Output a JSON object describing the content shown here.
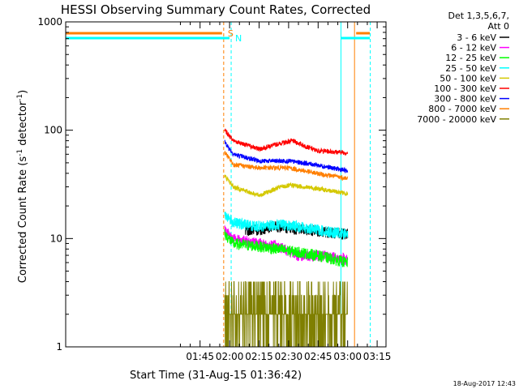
{
  "chart_data": {
    "type": "line",
    "title": "HESSI Observing Summary Count Rates, Corrected",
    "xlabel": "Start Time (31-Aug-15 01:36:42)",
    "ylabel_main": "Corrected Count Rate (s",
    "ylabel_sup1": "-1",
    "ylabel_mid": " detector",
    "ylabel_sup2": "-1",
    "ylabel_end": ")",
    "yscale": "log",
    "ylim": [
      1,
      1000
    ],
    "xlim_minutes": [
      36.7,
      199.5
    ],
    "yticks": [
      {
        "value": 1,
        "label": "1"
      },
      {
        "value": 10,
        "label": "10"
      },
      {
        "value": 100,
        "label": "100"
      },
      {
        "value": 1000,
        "label": "1000"
      }
    ],
    "xticks": [
      {
        "minute": 105,
        "label": "01:45"
      },
      {
        "minute": 120,
        "label": "02:00"
      },
      {
        "minute": 135,
        "label": "02:15"
      },
      {
        "minute": 150,
        "label": "02:30"
      },
      {
        "minute": 165,
        "label": "02:45"
      },
      {
        "minute": 180,
        "label": "03:00"
      },
      {
        "minute": 195,
        "label": "03:15"
      }
    ],
    "legend": {
      "header1": "Det 1,3,5,6,7,",
      "header2": "Att 0",
      "placement": "right",
      "entries": [
        {
          "label": "3 - 6 keV",
          "color": "#000000"
        },
        {
          "label": "6 - 12 keV",
          "color": "#ff00ff"
        },
        {
          "label": "12 - 25 keV",
          "color": "#00ff00"
        },
        {
          "label": "25 - 50 keV",
          "color": "#00ffff"
        },
        {
          "label": "50 - 100 keV",
          "color": "#d4c800"
        },
        {
          "label": "100 - 300 keV",
          "color": "#ff0000"
        },
        {
          "label": "300 - 800 keV",
          "color": "#0000ff"
        },
        {
          "label": "800 - 7000 keV",
          "color": "#ff7f00"
        },
        {
          "label": "7000 - 20000 keV",
          "color": "#7f7f00"
        }
      ]
    },
    "flags": [
      {
        "label": "S",
        "color": "#ff7f00"
      },
      {
        "label": "N",
        "color": "#00ffff"
      }
    ],
    "series_shape": [
      {
        "color": "#ff0000",
        "points": [
          [
            117.5,
            100
          ],
          [
            122,
            80
          ],
          [
            135,
            67
          ],
          [
            145,
            75
          ],
          [
            152,
            80
          ],
          [
            158,
            72
          ],
          [
            164,
            65
          ],
          [
            180,
            62
          ]
        ]
      },
      {
        "color": "#0000ff",
        "points": [
          [
            117.5,
            78
          ],
          [
            122,
            60
          ],
          [
            135,
            52
          ],
          [
            150,
            52
          ],
          [
            164,
            48
          ],
          [
            180,
            42
          ]
        ]
      },
      {
        "color": "#ff7f00",
        "points": [
          [
            117.5,
            63
          ],
          [
            122,
            48
          ],
          [
            135,
            45
          ],
          [
            150,
            45
          ],
          [
            164,
            40
          ],
          [
            180,
            36
          ]
        ]
      },
      {
        "color": "#d4c800",
        "points": [
          [
            117.5,
            38
          ],
          [
            122,
            30
          ],
          [
            135,
            25
          ],
          [
            146,
            30
          ],
          [
            152,
            31
          ],
          [
            164,
            29
          ],
          [
            180,
            26
          ]
        ]
      },
      {
        "color": "#000000",
        "points": [
          [
            128,
            12
          ],
          [
            135,
            12
          ],
          [
            142,
            13
          ],
          [
            150,
            12.5
          ],
          [
            160,
            12
          ],
          [
            170,
            11.5
          ],
          [
            180,
            11
          ]
        ]
      },
      {
        "color": "#00ffff",
        "points": [
          [
            117.5,
            17
          ],
          [
            122,
            14
          ],
          [
            135,
            13
          ],
          [
            145,
            13.5
          ],
          [
            155,
            13
          ],
          [
            165,
            12
          ],
          [
            180,
            11
          ]
        ]
      },
      {
        "color": "#ff00ff",
        "points": [
          [
            117.5,
            12
          ],
          [
            122,
            10
          ],
          [
            135,
            9
          ],
          [
            145,
            8.5
          ],
          [
            155,
            7
          ],
          [
            165,
            7
          ],
          [
            180,
            6.5
          ]
        ]
      },
      {
        "color": "#00ff00",
        "points": [
          [
            117.5,
            11
          ],
          [
            122,
            9
          ],
          [
            135,
            8.5
          ],
          [
            145,
            8
          ],
          [
            155,
            7.5
          ],
          [
            165,
            7
          ],
          [
            180,
            6
          ]
        ]
      },
      {
        "color": "#7f7f00",
        "points": [
          [
            117.5,
            2.5
          ],
          [
            125,
            2
          ],
          [
            140,
            2
          ],
          [
            160,
            2
          ],
          [
            170,
            2
          ],
          [
            180,
            1.8
          ]
        ]
      }
    ],
    "timestamp": "18-Aug-2017 12:43"
  }
}
